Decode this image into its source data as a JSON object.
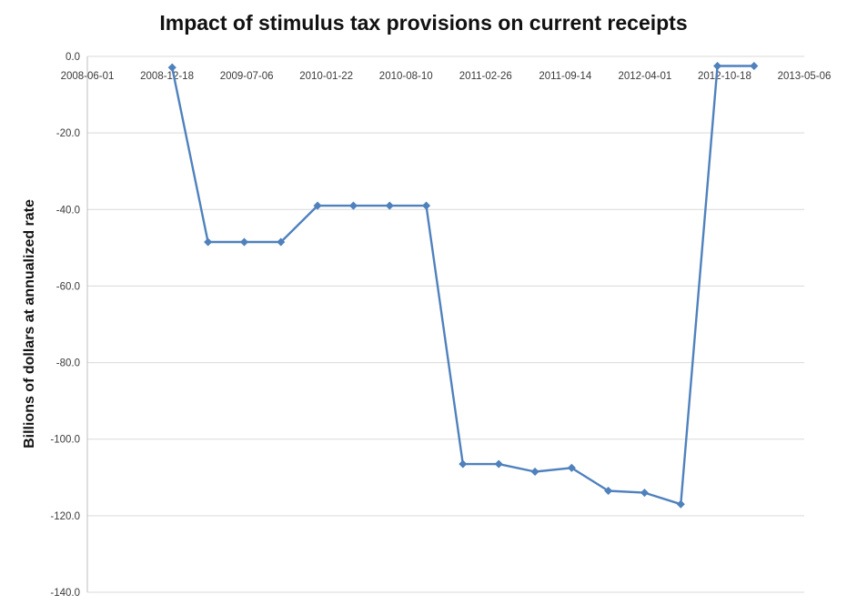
{
  "title": "Impact of stimulus tax provisions on current receipts",
  "chart_data": {
    "type": "line",
    "title": "Impact of stimulus tax provisions on current receipts",
    "xlabel": "",
    "ylabel": "Billions of dollars at annualized rate",
    "legend": "none",
    "grid": true,
    "marker": "diamond",
    "colors": {
      "line": "#4F81BD",
      "gridline": "#D9D9D9",
      "axis": "#BFBFBF",
      "tick_text": "#3B3B3B",
      "background": "#FFFFFF"
    },
    "x_axis": {
      "start": "2008-06-01",
      "end": "2013-05-06",
      "tick_labels": [
        "2008-06-01",
        "2008-12-18",
        "2009-07-06",
        "2010-01-22",
        "2010-08-10",
        "2011-02-26",
        "2011-09-14",
        "2012-04-01",
        "2012-10-18",
        "2013-05-06"
      ]
    },
    "y_axis": {
      "min": -140,
      "max": 0,
      "step": 20,
      "tick_labels": [
        "0.0",
        "-20.0",
        "-40.0",
        "-60.0",
        "-80.0",
        "-100.0",
        "-120.0",
        "-140.0"
      ]
    },
    "series": [
      {
        "name": "Impact of stimulus tax provisions on current receipts",
        "points": [
          {
            "date": "2008-12-31",
            "value": -2.9
          },
          {
            "date": "2009-03-31",
            "value": -48.5
          },
          {
            "date": "2009-06-30",
            "value": -48.5
          },
          {
            "date": "2009-09-30",
            "value": -48.5
          },
          {
            "date": "2009-12-31",
            "value": -39.0
          },
          {
            "date": "2010-03-31",
            "value": -39.0
          },
          {
            "date": "2010-06-30",
            "value": -39.0
          },
          {
            "date": "2010-09-30",
            "value": -39.0
          },
          {
            "date": "2010-12-31",
            "value": -106.5
          },
          {
            "date": "2011-03-31",
            "value": -106.5
          },
          {
            "date": "2011-06-30",
            "value": -108.5
          },
          {
            "date": "2011-09-30",
            "value": -107.5
          },
          {
            "date": "2011-12-31",
            "value": -113.5
          },
          {
            "date": "2012-03-31",
            "value": -114.0
          },
          {
            "date": "2012-06-30",
            "value": -117.0
          },
          {
            "date": "2012-09-30",
            "value": -2.5
          },
          {
            "date": "2012-12-31",
            "value": -2.5
          }
        ]
      }
    ]
  }
}
